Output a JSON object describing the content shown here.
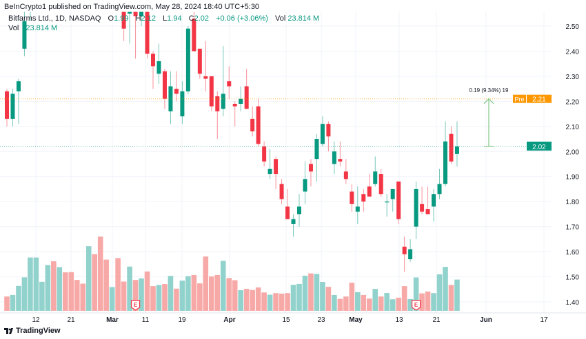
{
  "publish_line": "BeInCrypto1 published on TradingView.com, May 28, 2024 18:40 UTC+5:30",
  "legend": {
    "symbol": "Bitfarms Ltd., 1D, NASDAQ",
    "open_label": "O",
    "open": "1.99",
    "high_label": "H",
    "high": "2.12",
    "low_label": "L",
    "low": "1.94",
    "close_label": "C",
    "close": "2.02",
    "change": "+0.06 (+3.06%)",
    "vol_label": "Vol",
    "vol": "23.814 M"
  },
  "volume_legend": {
    "label": "Vol",
    "value": "23.814 M"
  },
  "footer_logo": "TradingView",
  "colors": {
    "up": "#089981",
    "down": "#F23645",
    "vol_up": "#92D2CC",
    "vol_down": "#F7A9A7",
    "pre": "#FF9800",
    "measure": "#81C784"
  },
  "chart_data": {
    "type": "candlestick",
    "title": "Bitfarms Ltd., 1D, NASDAQ",
    "ylim": [
      1.35,
      2.55
    ],
    "y_ticks": [
      "2.50",
      "2.40",
      "2.30",
      "2.20",
      "2.10",
      "2.00",
      "1.90",
      "1.80",
      "1.70",
      "1.60",
      "1.50",
      "1.40"
    ],
    "x_tick_labels": [
      "12",
      "21",
      "Mar",
      "11",
      "19",
      "Apr",
      "15",
      "23",
      "May",
      "13",
      "21",
      "Jun",
      "17"
    ],
    "grid": true,
    "candles": [
      {
        "o": 2.24,
        "h": 2.25,
        "l": 2.1,
        "c": 2.13
      },
      {
        "o": 2.13,
        "h": 2.25,
        "l": 2.1,
        "c": 2.23
      },
      {
        "o": 2.24,
        "h": 2.29,
        "l": 2.11,
        "c": 2.28
      },
      {
        "o": 2.41,
        "h": 2.6,
        "l": 2.38,
        "c": 2.52
      },
      {
        "o": 2.58,
        "h": 2.7,
        "l": 2.52,
        "c": 2.68
      },
      {
        "hidden": true,
        "dir": "up"
      },
      {
        "hidden": true,
        "dir": "up"
      },
      {
        "hidden": true,
        "dir": "up"
      },
      {
        "hidden": true,
        "dir": "down"
      },
      {
        "hidden": true,
        "dir": "up"
      },
      {
        "hidden": true,
        "dir": "down"
      },
      {
        "hidden": true,
        "dir": "down"
      },
      {
        "hidden": true,
        "dir": "down"
      },
      {
        "hidden": true,
        "dir": "down"
      },
      {
        "hidden": true,
        "dir": "up"
      },
      {
        "hidden": true,
        "dir": "down"
      },
      {
        "hidden": true,
        "dir": "down"
      },
      {
        "hidden": true,
        "dir": "down"
      },
      {
        "hidden": true,
        "dir": "up"
      },
      {
        "hidden": true,
        "dir": "down"
      },
      {
        "o": 2.6,
        "h": 2.62,
        "l": 2.44,
        "c": 2.49
      },
      {
        "o": 2.55,
        "h": 2.7,
        "l": 2.43,
        "c": 2.65
      },
      {
        "o": 2.6,
        "h": 2.62,
        "l": 2.37,
        "c": 2.54
      },
      {
        "o": 2.54,
        "h": 2.6,
        "l": 2.5,
        "c": 2.56
      },
      {
        "o": 2.58,
        "h": 2.6,
        "l": 2.37,
        "c": 2.39
      },
      {
        "o": 2.39,
        "h": 2.4,
        "l": 2.25,
        "c": 2.34
      },
      {
        "o": 2.31,
        "h": 2.43,
        "l": 2.27,
        "c": 2.36
      },
      {
        "o": 2.32,
        "h": 2.33,
        "l": 2.17,
        "c": 2.21
      },
      {
        "o": 2.16,
        "h": 2.32,
        "l": 2.11,
        "c": 2.26
      },
      {
        "o": 2.25,
        "h": 2.32,
        "l": 2.2,
        "c": 2.23
      },
      {
        "o": 2.14,
        "h": 2.28,
        "l": 2.11,
        "c": 2.24
      },
      {
        "o": 2.24,
        "h": 2.5,
        "l": 2.23,
        "c": 2.49
      },
      {
        "o": 2.53,
        "h": 2.6,
        "l": 2.4,
        "c": 2.4
      },
      {
        "o": 2.41,
        "h": 2.41,
        "l": 2.29,
        "c": 2.31
      },
      {
        "o": 2.3,
        "h": 2.44,
        "l": 2.24,
        "c": 2.29
      },
      {
        "o": 2.3,
        "h": 2.3,
        "l": 2.16,
        "c": 2.18
      },
      {
        "o": 2.22,
        "h": 2.24,
        "l": 2.05,
        "c": 2.16
      },
      {
        "o": 2.17,
        "h": 2.42,
        "l": 2.14,
        "c": 2.23
      },
      {
        "o": 2.28,
        "h": 2.34,
        "l": 2.21,
        "c": 2.26
      },
      {
        "o": 2.19,
        "h": 2.2,
        "l": 2.1,
        "c": 2.18
      },
      {
        "o": 2.19,
        "h": 2.26,
        "l": 2.16,
        "c": 2.21
      },
      {
        "o": 2.26,
        "h": 2.33,
        "l": 2.17,
        "c": 2.17
      },
      {
        "o": 2.13,
        "h": 2.18,
        "l": 2.06,
        "c": 2.08
      },
      {
        "o": 2.18,
        "h": 2.21,
        "l": 2.02,
        "c": 2.03
      },
      {
        "o": 2.02,
        "h": 2.04,
        "l": 1.94,
        "c": 1.96
      },
      {
        "o": 1.91,
        "h": 2.01,
        "l": 1.89,
        "c": 1.93
      },
      {
        "o": 1.97,
        "h": 1.98,
        "l": 1.85,
        "c": 1.91
      },
      {
        "o": 1.87,
        "h": 1.89,
        "l": 1.79,
        "c": 1.81
      },
      {
        "o": 1.78,
        "h": 1.85,
        "l": 1.73,
        "c": 1.73
      },
      {
        "o": 1.71,
        "h": 1.75,
        "l": 1.66,
        "c": 1.73
      },
      {
        "o": 1.75,
        "h": 1.83,
        "l": 1.7,
        "c": 1.78
      },
      {
        "o": 1.84,
        "h": 1.96,
        "l": 1.79,
        "c": 1.89
      },
      {
        "o": 1.95,
        "h": 1.97,
        "l": 1.86,
        "c": 1.92
      },
      {
        "o": 1.97,
        "h": 2.07,
        "l": 1.88,
        "c": 2.05
      },
      {
        "o": 2.03,
        "h": 2.14,
        "l": 2.02,
        "c": 2.11
      },
      {
        "o": 2.11,
        "h": 2.12,
        "l": 2.0,
        "c": 2.06
      },
      {
        "o": 1.95,
        "h": 2.04,
        "l": 1.91,
        "c": 2.0
      },
      {
        "o": 1.97,
        "h": 2.04,
        "l": 1.94,
        "c": 1.96
      },
      {
        "o": 1.92,
        "h": 1.97,
        "l": 1.87,
        "c": 1.89
      },
      {
        "o": 1.84,
        "h": 1.87,
        "l": 1.76,
        "c": 1.79
      },
      {
        "o": 1.76,
        "h": 1.86,
        "l": 1.71,
        "c": 1.78
      },
      {
        "o": 1.83,
        "h": 1.85,
        "l": 1.76,
        "c": 1.8
      },
      {
        "o": 1.86,
        "h": 1.91,
        "l": 1.82,
        "c": 1.82
      },
      {
        "o": 1.87,
        "h": 1.98,
        "l": 1.86,
        "c": 1.92
      },
      {
        "o": 1.91,
        "h": 1.93,
        "l": 1.82,
        "c": 1.83
      },
      {
        "o": 1.8,
        "h": 1.83,
        "l": 1.74,
        "c": 1.8
      },
      {
        "o": 1.81,
        "h": 1.85,
        "l": 1.76,
        "c": 1.85
      },
      {
        "o": 1.88,
        "h": 1.88,
        "l": 1.71,
        "c": 1.73
      },
      {
        "o": 1.62,
        "h": 1.66,
        "l": 1.52,
        "c": 1.59
      },
      {
        "o": 1.57,
        "h": 1.65,
        "l": 1.56,
        "c": 1.61
      },
      {
        "o": 1.7,
        "h": 1.88,
        "l": 1.65,
        "c": 1.85
      },
      {
        "o": 1.79,
        "h": 1.86,
        "l": 1.75,
        "c": 1.76
      },
      {
        "o": 1.77,
        "h": 1.86,
        "l": 1.75,
        "c": 1.75
      },
      {
        "o": 1.78,
        "h": 1.85,
        "l": 1.72,
        "c": 1.83
      },
      {
        "o": 1.83,
        "h": 1.93,
        "l": 1.81,
        "c": 1.87
      },
      {
        "o": 1.87,
        "h": 2.12,
        "l": 1.86,
        "c": 2.04
      },
      {
        "o": 2.07,
        "h": 2.1,
        "l": 1.95,
        "c": 1.96
      },
      {
        "o": 1.99,
        "h": 2.12,
        "l": 1.94,
        "c": 2.02
      }
    ],
    "volume_millions": [
      10.9,
      12.1,
      19.0,
      25.5,
      40.6,
      40.6,
      22.1,
      34.9,
      37.8,
      33.3,
      29.3,
      29.5,
      23.5,
      20.7,
      49.2,
      43.2,
      56.6,
      39.0,
      18.1,
      40.2,
      22.3,
      33.7,
      23.5,
      24.7,
      30.0,
      18.8,
      19.7,
      20.4,
      26.6,
      16.9,
      23.0,
      26.4,
      27.3,
      20.9,
      41.4,
      26.2,
      27.3,
      38.1,
      25.0,
      23.3,
      15.7,
      16.7,
      15.9,
      17.8,
      14.0,
      12.3,
      13.5,
      13.1,
      13.5,
      19.8,
      20.5,
      26.8,
      28.5,
      28.1,
      22.0,
      18.3,
      12.1,
      9.1,
      10.9,
      21.4,
      14.2,
      12.1,
      9.3,
      16.7,
      10.9,
      13.6,
      8.8,
      10.0,
      18.8,
      9.0,
      25.4,
      13.3,
      14.7,
      13.5,
      27.8,
      33.5,
      19.7,
      23.8
    ],
    "earnings_marker_label": "E",
    "earnings_candle_indices": [
      22,
      70
    ],
    "last_price": {
      "value": 2.02,
      "label": "2.02"
    },
    "premarket": {
      "label": "Pre",
      "value": 2.21,
      "value_label": "2.21"
    },
    "measure": {
      "from": 2.02,
      "to": 2.21,
      "label": "0.19 (9.34%) 19"
    }
  }
}
